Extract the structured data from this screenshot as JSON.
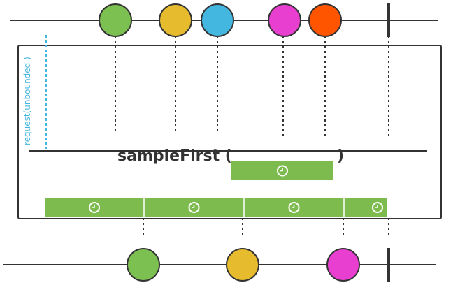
{
  "operator": {
    "name": "sampleFirst (",
    "close": ")"
  },
  "request_label": "request(unbounded )",
  "colors": {
    "green": "#7dc052",
    "yellow": "#e7bb2e",
    "blue": "#44b7e0",
    "magenta": "#e83fd0",
    "orange": "#ff5500",
    "timer": "#7dbb4e",
    "line": "#333333",
    "request": "#44b7e0"
  },
  "source": {
    "marbles": [
      {
        "color": "green"
      },
      {
        "color": "yellow"
      },
      {
        "color": "blue"
      },
      {
        "color": "magenta"
      },
      {
        "color": "orange"
      }
    ],
    "completion": true
  },
  "companion_timer": {
    "icon": "clock-icon"
  },
  "window_timers": [
    {
      "icon": "clock-icon"
    },
    {
      "icon": "clock-icon"
    },
    {
      "icon": "clock-icon"
    },
    {
      "icon": "clock-icon"
    }
  ],
  "output": {
    "marbles": [
      {
        "color": "green"
      },
      {
        "color": "yellow"
      },
      {
        "color": "magenta"
      }
    ],
    "completion": true
  }
}
